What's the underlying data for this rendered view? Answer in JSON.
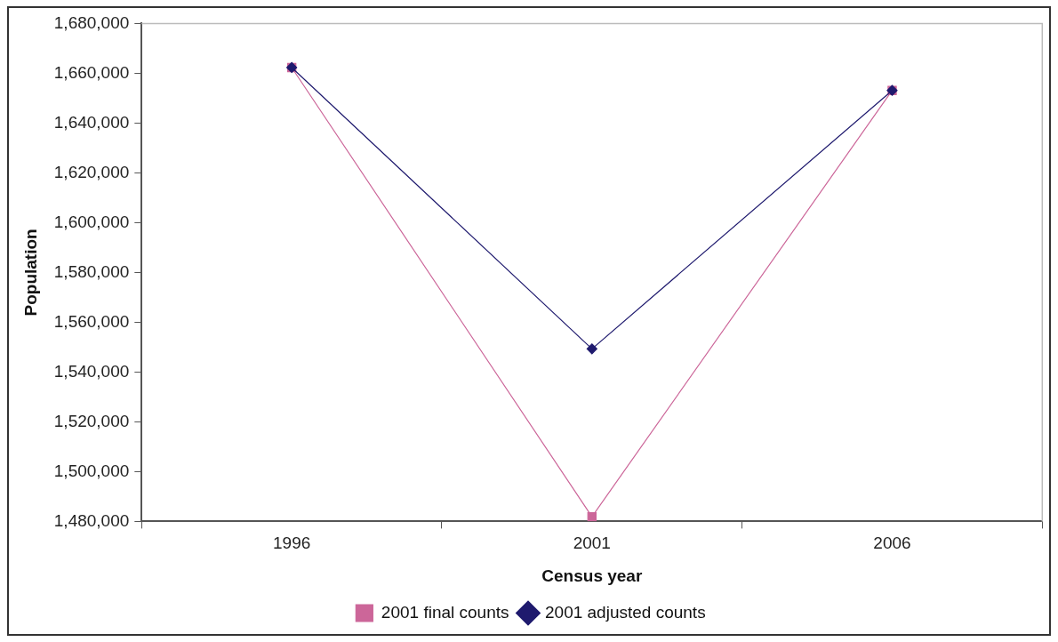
{
  "chart_data": {
    "type": "line",
    "xlabel": "Census year",
    "ylabel": "Population",
    "categories": [
      "1996",
      "2001",
      "2006"
    ],
    "series": [
      {
        "name": "2001 final counts",
        "color": "#cc6699",
        "marker": "square",
        "values": [
          1662300,
          1481900,
          1653100
        ]
      },
      {
        "name": "2001 adjusted counts",
        "color": "#1f1a6e",
        "marker": "diamond",
        "values": [
          1662300,
          1549300,
          1653100
        ]
      }
    ],
    "ylim": [
      1480000,
      1680000
    ],
    "yticks": [
      {
        "value": 1480000,
        "label": "1,480,000"
      },
      {
        "value": 1500000,
        "label": "1,500,000"
      },
      {
        "value": 1520000,
        "label": "1,520,000"
      },
      {
        "value": 1540000,
        "label": "1,540,000"
      },
      {
        "value": 1560000,
        "label": "1,560,000"
      },
      {
        "value": 1580000,
        "label": "1,580,000"
      },
      {
        "value": 1600000,
        "label": "1,600,000"
      },
      {
        "value": 1620000,
        "label": "1,620,000"
      },
      {
        "value": 1640000,
        "label": "1,640,000"
      },
      {
        "value": 1660000,
        "label": "1,660,000"
      },
      {
        "value": 1680000,
        "label": "1,680,000"
      }
    ],
    "grid": false,
    "legend": "bottom",
    "line_style": "solid"
  }
}
